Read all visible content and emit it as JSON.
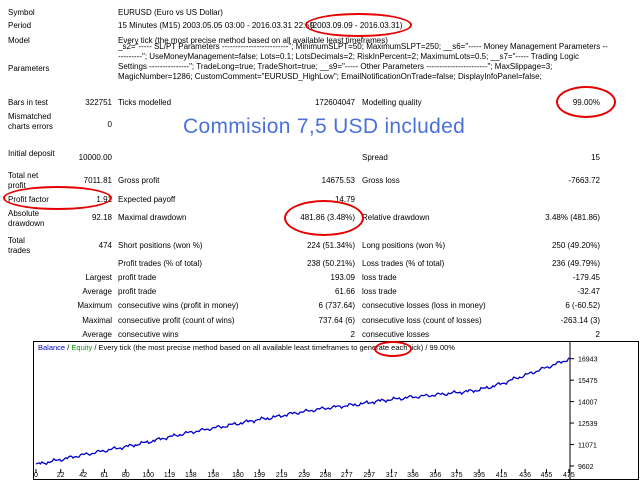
{
  "report": {
    "symbol": {
      "label": "Symbol",
      "value": "EURUSD (Euro vs US Dollar)"
    },
    "period": {
      "label": "Period",
      "value": "15 Minutes (M15) 2003.05.05 03:00 - 2016.03.31 22:59",
      "range": "(2003.09.09 - 2016.03.31)"
    },
    "model": {
      "label": "Model",
      "value": "Every tick (the most precise method based on all available least timeframes)"
    },
    "parameters": {
      "label": "Parameters",
      "value": "_s2=\"----- SL/PT Parameters -------------------------\"; MinimumSLPT=50; MaximumSLPT=250; __s6=\"----- Money Management Parameters -----------\"; UseMoneyManagement=false; Lots=0.1; LotsDecimals=2; RiskInPercent=2; MaximumLots=0.5; __s7=\"----- Trading Logic Settings ---------------\"; TradeLong=true; TradeShort=true; __s9=\"----- Other Parameters -----------------------\"; MaxSlippage=3; MagicNumber=1286; CustomComment=\"EURUSD_HighLow\"; EmailNotificationOnTrade=false; DisplayInfoPanel=false;"
    },
    "bars_in_test": {
      "label": "Bars in test",
      "value": "322751"
    },
    "ticks_modelled": {
      "label": "Ticks modelled",
      "value": "172604047"
    },
    "modelling_quality": {
      "label": "Modelling quality",
      "value": "99.00%"
    },
    "mismatched_errors": {
      "label": "Mismatched charts errors",
      "value": "0"
    },
    "initial_deposit": {
      "label": "Initial deposit",
      "value": "10000.00"
    },
    "spread": {
      "label": "Spread",
      "value": "15"
    },
    "total_net_profit": {
      "label": "Total net profit",
      "value": "7011.81"
    },
    "gross_profit": {
      "label": "Gross profit",
      "value": "14675.53"
    },
    "gross_loss": {
      "label": "Gross loss",
      "value": "-7663.72"
    },
    "profit_factor": {
      "label": "Profit factor",
      "value": "1.91"
    },
    "expected_payoff": {
      "label": "Expected payoff",
      "value": "14.79"
    },
    "absolute_drawdown": {
      "label": "Absolute drawdown",
      "value": "92.18"
    },
    "maximal_drawdown": {
      "label": "Maximal drawdown",
      "value": "481.86 (3.48%)"
    },
    "relative_drawdown": {
      "label": "Relative drawdown",
      "value": "3.48% (481.86)"
    },
    "total_trades": {
      "label": "Total trades",
      "value": "474"
    },
    "short_positions": {
      "label": "Short positions (won %)",
      "value": "224 (51.34%)"
    },
    "long_positions": {
      "label": "Long positions (won %)",
      "value": "250 (49.20%)"
    },
    "profit_trades": {
      "label": "Profit trades (% of total)",
      "value": "238 (50.21%)"
    },
    "loss_trades_pct": {
      "label": "Loss trades (% of total)",
      "value": "236 (49.79%)"
    },
    "largest": {
      "label": "Largest",
      "profit_label": "profit trade",
      "profit": "193.09",
      "loss_label": "loss trade",
      "loss": "-179.45"
    },
    "average": {
      "label": "Average",
      "profit_label": "profit trade",
      "profit": "61.66",
      "loss_label": "loss trade",
      "loss": "-32.47"
    },
    "maximum": {
      "label": "Maximum",
      "wins_label": "consecutive wins (profit in money)",
      "wins": "6 (737.64)",
      "losses_label": "consecutive losses (loss in money)",
      "losses": "6 (-60.52)"
    },
    "maximal": {
      "label": "Maximal",
      "profit_label": "consecutive profit (count of wins)",
      "profit": "737.64 (6)",
      "loss_label": "consecutive loss (count of losses)",
      "loss": "-263.14 (3)"
    },
    "average_consec": {
      "label": "Average",
      "wins_label": "consecutive wins",
      "wins": "2",
      "losses_label": "consecutive losses",
      "losses": "2"
    }
  },
  "overlay_text": "Commision 7,5 USD included",
  "legend": {
    "balance": "Balance",
    "sep": "/",
    "equity": "Equity",
    "rest": "/ Every tick (the most precise method based on all available least timeframes to generate each tick) /",
    "quality": "99.00%"
  },
  "colors": {
    "overlay": "#4a72d8",
    "ring": "#e60000",
    "balance": "#0000c8",
    "equity": "#00a000"
  },
  "chart_data": {
    "type": "line",
    "series": [
      {
        "name": "Balance",
        "values": [
          9700,
          9830,
          9960,
          10090,
          10230,
          10360,
          10480,
          10610,
          10740,
          10850,
          10970,
          11110,
          11250,
          11400,
          11560,
          11700,
          11840,
          11970,
          12080,
          12210,
          12300,
          12440,
          12560,
          12690,
          12800,
          12890,
          13010,
          13150,
          13260,
          13360,
          13470,
          13560,
          13640,
          13720,
          13790,
          13880,
          13990,
          14080,
          14160,
          14230,
          14310,
          14360,
          14430,
          14490,
          14560,
          14630,
          14700,
          14780,
          14920,
          15100,
          15290,
          15560,
          15760,
          15990,
          16230,
          16460,
          16700,
          16943
        ]
      }
    ],
    "x_ticks": [
      "0",
      "22",
      "42",
      "61",
      "80",
      "100",
      "119",
      "138",
      "158",
      "180",
      "199",
      "219",
      "239",
      "258",
      "277",
      "297",
      "317",
      "336",
      "356",
      "375",
      "395",
      "415",
      "436",
      "455",
      "475"
    ],
    "y_ticks": [
      "16943",
      "15475",
      "14007",
      "12539",
      "11071",
      "9602"
    ],
    "xlim": [
      0,
      476
    ],
    "ylim": [
      9602,
      17400
    ]
  }
}
